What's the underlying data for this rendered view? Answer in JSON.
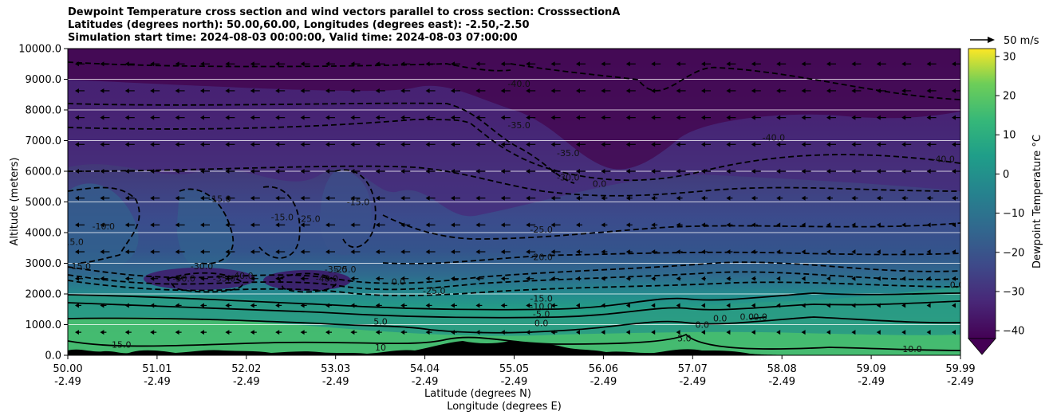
{
  "title_lines": [
    "Dewpoint Temperature cross section and wind vectors parallel to cross section: CrosssectionA",
    "Latitudes (degrees north): 50.00,60.00, Longitudes (degrees east): -2.50,-2.50",
    "Simulation start time: 2024-08-03 00:00:00, Valid time: 2024-08-03 07:00:00"
  ],
  "chart_data": {
    "type": "heatmap",
    "title": "Dewpoint Temperature cross section and wind vectors parallel to cross section: CrosssectionA",
    "xlabel_lines": [
      "Latitude (degrees N)",
      "Longitude (degrees E)"
    ],
    "ylabel": "Altitude (meters)",
    "x_ticks": [
      {
        "lat": "50.00",
        "lon": "-2.49"
      },
      {
        "lat": "51.01",
        "lon": "-2.49"
      },
      {
        "lat": "52.02",
        "lon": "-2.49"
      },
      {
        "lat": "53.03",
        "lon": "-2.49"
      },
      {
        "lat": "54.04",
        "lon": "-2.49"
      },
      {
        "lat": "55.05",
        "lon": "-2.49"
      },
      {
        "lat": "56.06",
        "lon": "-2.49"
      },
      {
        "lat": "57.07",
        "lon": "-2.49"
      },
      {
        "lat": "58.08",
        "lon": "-2.49"
      },
      {
        "lat": "59.09",
        "lon": "-2.49"
      },
      {
        "lat": "59.99",
        "lon": "-2.49"
      }
    ],
    "xlim": [
      50.0,
      59.99
    ],
    "y_ticks": [
      "0.0",
      "1000.0",
      "2000.0",
      "3000.0",
      "4000.0",
      "5000.0",
      "6000.0",
      "7000.0",
      "8000.0",
      "9000.0",
      "10000.0"
    ],
    "ylim": [
      0,
      10000
    ],
    "grid": "horizontal",
    "colorbar": {
      "label": "Dewpoint Temperature °C",
      "ticks": [
        "30",
        "20",
        "10",
        "0",
        "−10",
        "−20",
        "−30",
        "−40"
      ],
      "range": [
        -42,
        32
      ],
      "colormap": "viridis",
      "extend": "min"
    },
    "quiver_key": "50 m/s",
    "contour_labels": [
      {
        "text": "-40.0",
        "lat": 55.05,
        "alt": 8750
      },
      {
        "text": "-35.0",
        "lat": 55.05,
        "alt": 7400
      },
      {
        "text": "-35.0",
        "lat": 55.6,
        "alt": 6500
      },
      {
        "text": "-30.0",
        "lat": 55.6,
        "alt": 5700
      },
      {
        "text": "0.0",
        "lat": 55.95,
        "alt": 5500
      },
      {
        "text": "-40.0",
        "lat": 57.9,
        "alt": 7000
      },
      {
        "text": "-40.0",
        "lat": 59.8,
        "alt": 6300
      },
      {
        "text": "-25.0",
        "lat": 55.3,
        "alt": 4000
      },
      {
        "text": "-20.0",
        "lat": 55.3,
        "alt": 3100
      },
      {
        "text": "-15.0",
        "lat": 51.7,
        "alt": 5000
      },
      {
        "text": "-15.0",
        "lat": 52.4,
        "alt": 4400
      },
      {
        "text": "-15.0",
        "lat": 53.25,
        "alt": 4900
      },
      {
        "text": "-25.0",
        "lat": 52.7,
        "alt": 4350
      },
      {
        "text": "-10.0",
        "lat": 50.4,
        "alt": 4100
      },
      {
        "text": "-15.0",
        "lat": 50.05,
        "alt": 3600
      },
      {
        "text": "15.0",
        "lat": 50.15,
        "alt": 2800
      },
      {
        "text": "-30.0",
        "lat": 51.3,
        "alt": 2400
      },
      {
        "text": "-30.0",
        "lat": 51.5,
        "alt": 2800
      },
      {
        "text": "-35.0",
        "lat": 51.75,
        "alt": 2400
      },
      {
        "text": "-40.0",
        "lat": 51.95,
        "alt": 2500
      },
      {
        "text": "-40.0",
        "lat": 52.9,
        "alt": 2400
      },
      {
        "text": "-35.0",
        "lat": 53.0,
        "alt": 2700
      },
      {
        "text": "-25.0",
        "lat": 53.1,
        "alt": 2700
      },
      {
        "text": "-25.0",
        "lat": 54.1,
        "alt": 2000
      },
      {
        "text": "0.0",
        "lat": 53.7,
        "alt": 2300
      },
      {
        "text": "-15.0",
        "lat": 55.3,
        "alt": 1750
      },
      {
        "text": "-10.0",
        "lat": 55.3,
        "alt": 1500
      },
      {
        "text": "-5.0",
        "lat": 55.3,
        "alt": 1250
      },
      {
        "text": "0.0",
        "lat": 55.3,
        "alt": 950
      },
      {
        "text": "5.0",
        "lat": 53.5,
        "alt": 1000
      },
      {
        "text": "15.0",
        "lat": 50.6,
        "alt": 250
      },
      {
        "text": "10",
        "lat": 53.5,
        "alt": 150
      },
      {
        "text": "0.0",
        "lat": 57.1,
        "alt": 900
      },
      {
        "text": "0.0",
        "lat": 57.3,
        "alt": 1100
      },
      {
        "text": "0.0",
        "lat": 57.6,
        "alt": 1150
      },
      {
        "text": "0.0",
        "lat": 57.75,
        "alt": 1150
      },
      {
        "text": "5.0",
        "lat": 56.9,
        "alt": 450
      },
      {
        "text": "10.0",
        "lat": 59.45,
        "alt": 100
      },
      {
        "text": "0.0",
        "lat": 59.95,
        "alt": 2200
      }
    ],
    "wind_vectors": "arrows parallel to cross section on an 11-row by 36-column grid; mostly pointing toward lower latitude, strongest in upper levels and weak or calm in the lower right"
  }
}
